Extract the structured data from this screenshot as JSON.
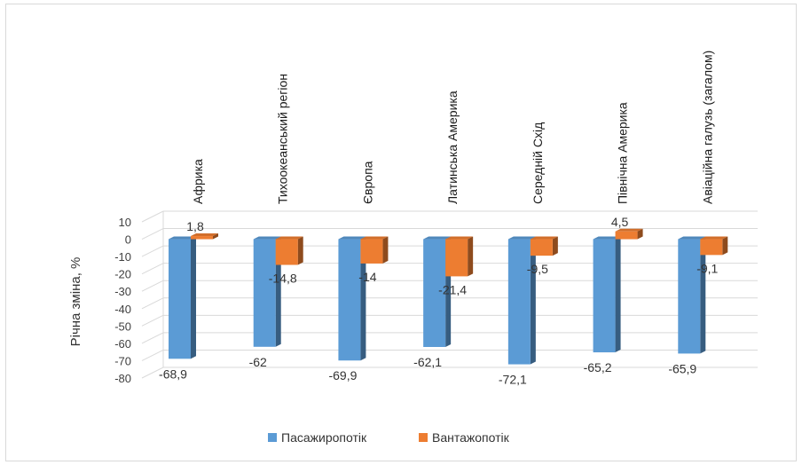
{
  "chart_data": {
    "type": "bar",
    "title": "",
    "xlabel": "",
    "ylabel": "Річна зміна, %",
    "ylim": [
      -80,
      10
    ],
    "yticks": [
      10,
      0,
      -10,
      -20,
      -30,
      -40,
      -50,
      -60,
      -70,
      -80
    ],
    "grid": true,
    "legend_position": "bottom",
    "categories": [
      "Африка",
      "Тихоокеанський регіон",
      "Європа",
      "Латинська Америка",
      "Середній Схід",
      "Північна Америка",
      "Авіаційна галузь (загалом)"
    ],
    "series": [
      {
        "name": "Пасажиропотік",
        "color": "#5b9bd5",
        "values": [
          -68.9,
          -62,
          -69.9,
          -62.1,
          -72.1,
          -65.2,
          -65.9
        ],
        "labels": [
          "-68,9",
          "-62",
          "-69,9",
          "-62,1",
          "-72,1",
          "-65,2",
          "-65,9"
        ]
      },
      {
        "name": "Вантажопотік",
        "color": "#ed7d31",
        "values": [
          1.8,
          -14.8,
          -14,
          -21.4,
          -9.5,
          4.5,
          -9.1
        ],
        "labels": [
          "1,8",
          "-14,8",
          "-14",
          "-21,4",
          "-9,5",
          "4,5",
          "-9,1"
        ]
      }
    ]
  }
}
